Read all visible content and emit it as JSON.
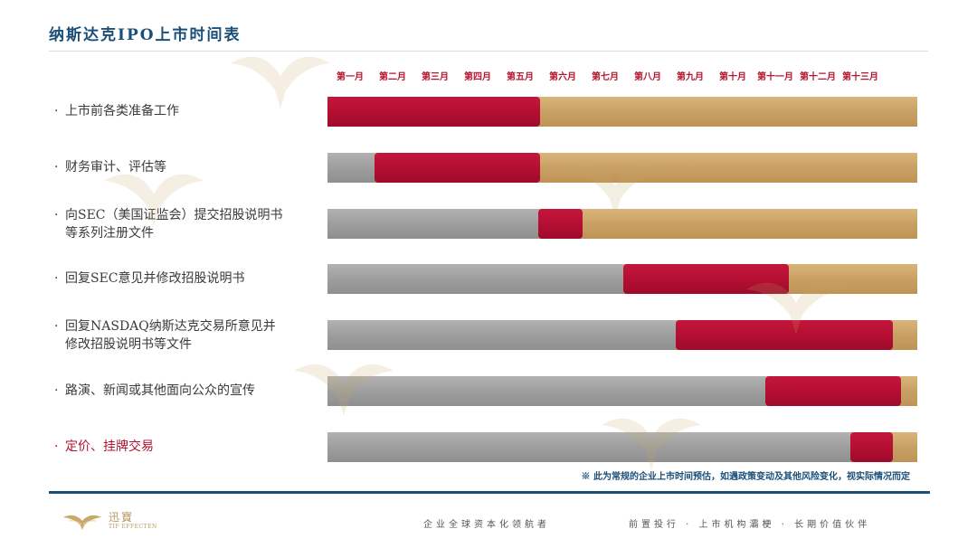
{
  "title": "纳斯达克IPO上市时间表",
  "months": [
    "第一月",
    "第二月",
    "第三月",
    "第四月",
    "第五月",
    "第六月",
    "第七月",
    "第八月",
    "第九月",
    "第十月",
    "第十一月",
    "第十二月",
    "第十三月"
  ],
  "rows": [
    {
      "label": "上市前各类准备工作",
      "grey_until_month": 0,
      "active_months": [
        0,
        5.0
      ],
      "highlight": false
    },
    {
      "label": "财务审计、评估等",
      "grey_until_month": 1.1,
      "active_months": [
        1.1,
        5.0
      ],
      "highlight": false
    },
    {
      "label": "向SEC（美国证监会）提交招股说明书等系列注册文件",
      "grey_until_month": 4.95,
      "active_months": [
        4.95,
        6.0
      ],
      "highlight": false
    },
    {
      "label": "回复SEC意见并修改招股说明书",
      "grey_until_month": 6.95,
      "active_months": [
        6.95,
        10.85
      ],
      "highlight": false
    },
    {
      "label": "回复NASDAQ纳斯达克交易所意见并修改招股说明书等文件",
      "grey_until_month": 8.2,
      "active_months": [
        8.2,
        13.3
      ],
      "highlight": false
    },
    {
      "label": "路演、新闻或其他面向公众的宣传",
      "grey_until_month": 10.3,
      "active_months": [
        10.3,
        13.5
      ],
      "highlight": false
    },
    {
      "label": "定价、挂牌交易",
      "grey_until_month": 12.3,
      "active_months": [
        12.3,
        13.3
      ],
      "highlight": true
    }
  ],
  "bullet": "·",
  "note": "※ 此为常规的企业上市时间预估，如遇政策变动及其他风险变化，视实际情况而定",
  "footer": {
    "logo_cn": "迅寶",
    "logo_en": "TIF EFFECTEN",
    "slogan1": "企业全球资本化领航者",
    "slogan2": "前置投行 · 上市机构灞梗 · 长期价值伙伴"
  },
  "colors": {
    "title": "#1a4f7a",
    "month_label": "#b5162f",
    "active_bar": "#b50f33",
    "done_bar": "#9e9e9e",
    "remaining_bar": "#c9a064"
  }
}
